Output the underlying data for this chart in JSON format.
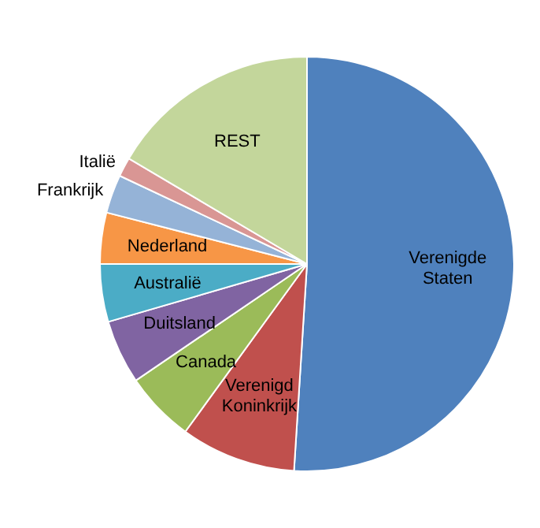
{
  "chart_data": {
    "type": "pie",
    "categories": [
      "Verenigde Staten",
      "Verenigd Koninkrijk",
      "Canada",
      "Duitsland",
      "Australië",
      "Nederland",
      "Frankrijk",
      "Italië",
      "REST"
    ],
    "values": [
      51,
      9,
      5.5,
      5,
      4.5,
      4,
      3,
      1.5,
      16.5
    ],
    "colors": [
      "#4f81bd",
      "#c0504d",
      "#9bbb59",
      "#8064a2",
      "#4bacc6",
      "#f79646",
      "#95b3d7",
      "#d99694",
      "#c3d69b"
    ],
    "legend": false
  }
}
